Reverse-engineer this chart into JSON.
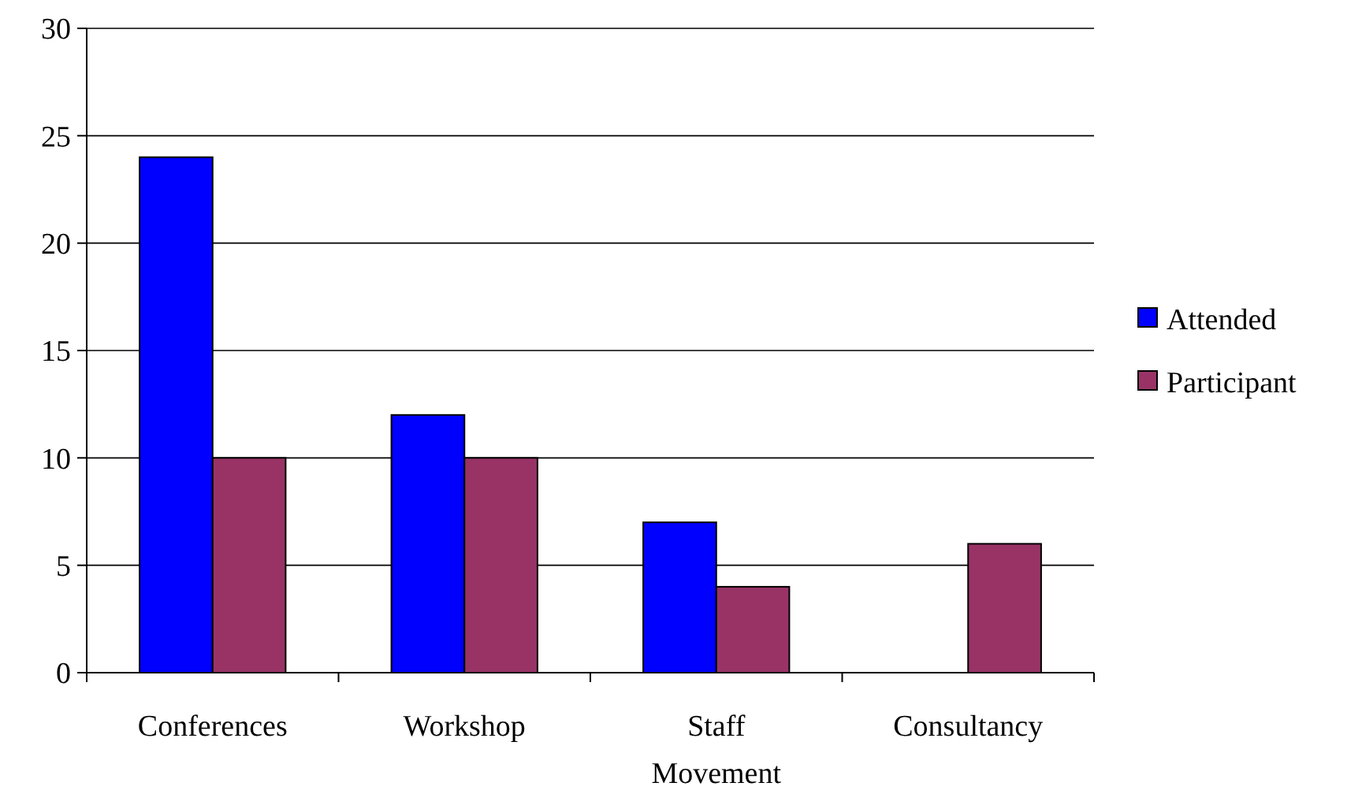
{
  "chart_data": {
    "type": "bar",
    "categories": [
      "Conferences",
      "Workshop",
      "Staff Movement",
      "Consultancy"
    ],
    "series": [
      {
        "name": "Attended",
        "color": "#0000ff",
        "values": [
          24,
          12,
          7,
          0
        ]
      },
      {
        "name": "Participant",
        "color": "#993366",
        "values": [
          10,
          10,
          4,
          6
        ]
      }
    ],
    "ylim": [
      0,
      30
    ],
    "yticks": [
      0,
      5,
      10,
      15,
      20,
      25,
      30
    ],
    "grid": "y",
    "legend": "right"
  }
}
